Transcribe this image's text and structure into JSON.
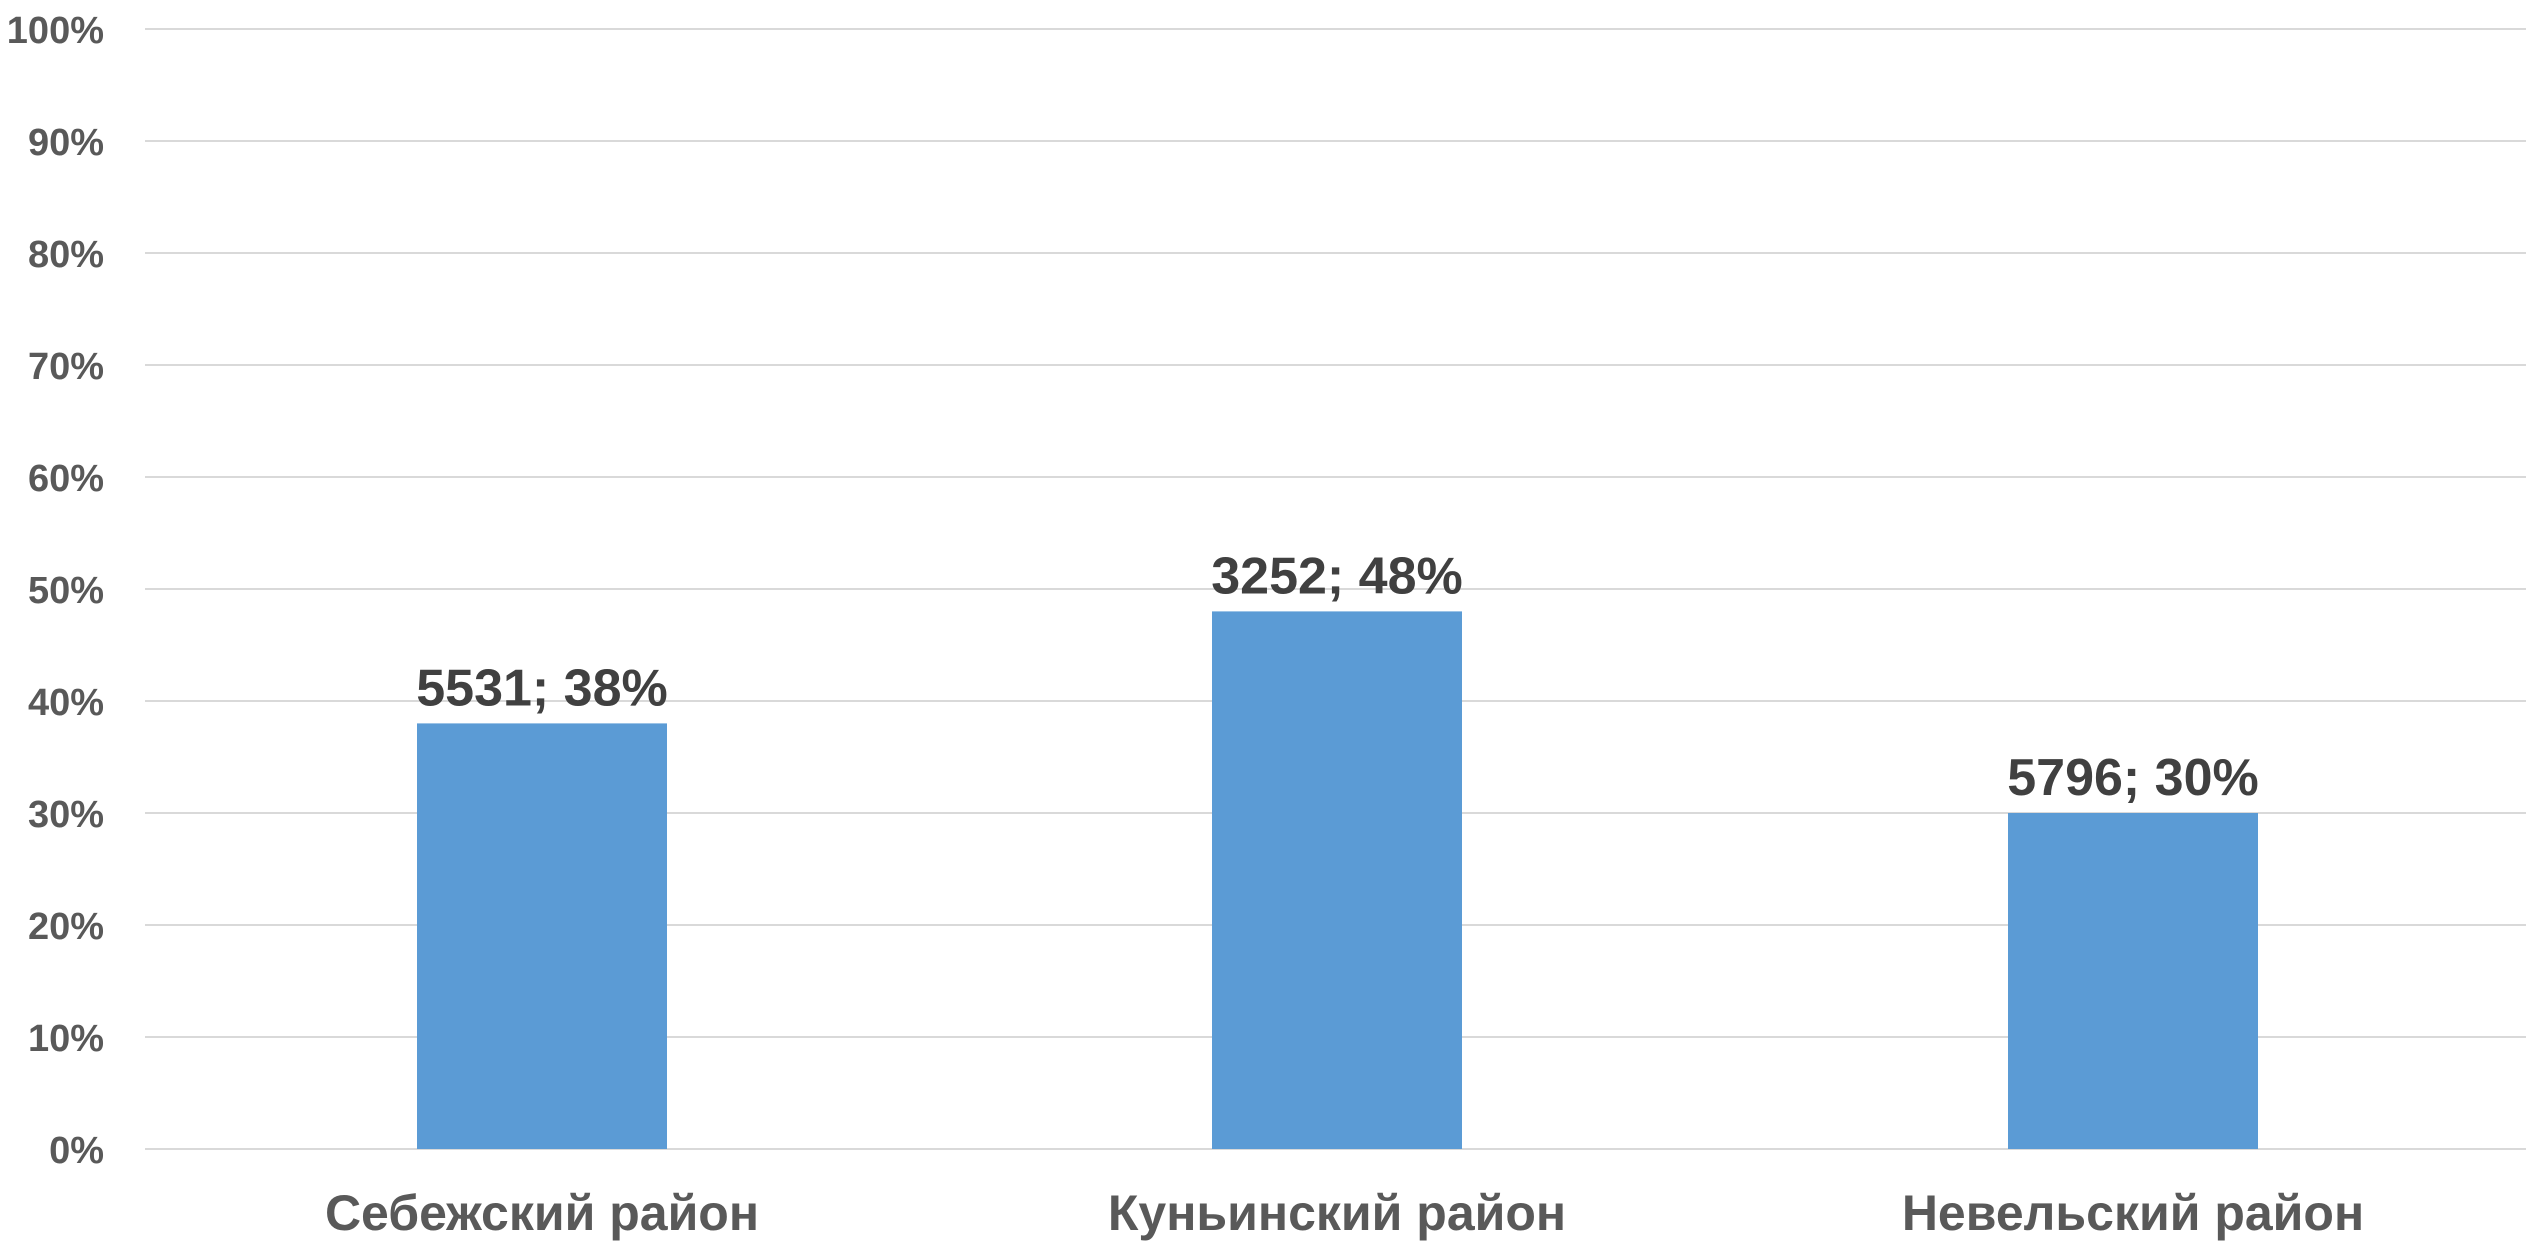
{
  "chart_data": {
    "type": "bar",
    "title": "",
    "xlabel": "",
    "ylabel": "",
    "categories": [
      "Себежский район",
      "Куньинский район",
      "Невельский район"
    ],
    "series": [
      {
        "values": [
          38,
          48,
          30
        ],
        "counts": [
          5531,
          3252,
          5796
        ],
        "data_labels": [
          "5531; 38%",
          "3252; 48%",
          "5796; 30%"
        ]
      }
    ],
    "ylim": [
      0,
      100
    ],
    "y_ticks": [
      0,
      10,
      20,
      30,
      40,
      50,
      60,
      70,
      80,
      90,
      100
    ],
    "y_tick_labels": [
      "0%",
      "10%",
      "20%",
      "30%",
      "40%",
      "50%",
      "60%",
      "70%",
      "80%",
      "90%",
      "100%"
    ],
    "grid": true,
    "legend": "none"
  },
  "colors": {
    "bar": "#5b9bd5",
    "grid": "#d9d9d9",
    "axis_text": "#595959",
    "data_label_text": "#404040",
    "background": "#ffffff"
  }
}
